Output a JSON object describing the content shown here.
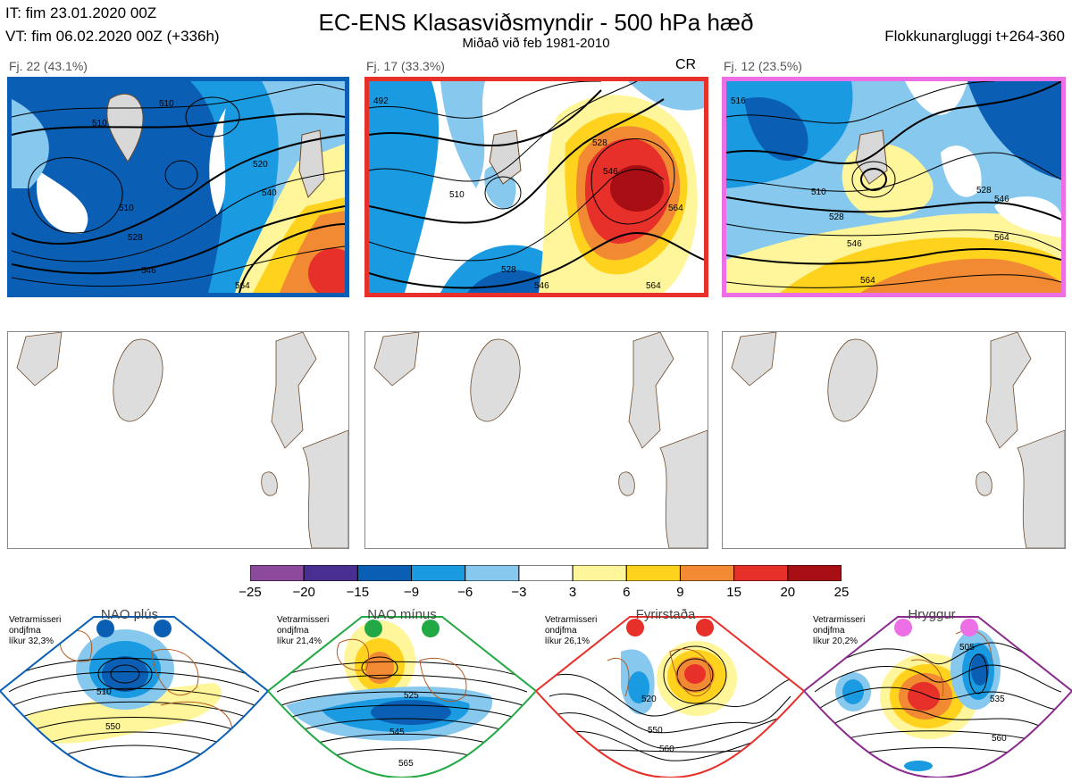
{
  "header": {
    "it": "IT: fim 23.01.2020 00Z",
    "vt": "VT: fim 06.02.2020 00Z  (+336h)",
    "title": "EC-ENS Klasasviðsmyndir - 500 hPa hæð",
    "subtitle": "Miðað við feb 1981-2010",
    "window": "Flokkunargluggi t+264-360"
  },
  "clusters": [
    {
      "label": "Fj. 22 (43.1%)",
      "frame_color": "#0a5fb4",
      "contour_labels": [
        "510",
        "510",
        "520",
        "540",
        "528",
        "546",
        "564",
        "510"
      ]
    },
    {
      "label": "Fj. 17 (33.3%)",
      "frame_color": "#e8302a",
      "badge": "CR",
      "contour_labels": [
        "528",
        "546",
        "510",
        "564",
        "528",
        "546",
        "564",
        "492"
      ]
    },
    {
      "label": "Fj. 12 (23.5%)",
      "frame_color": "#ec6fe6",
      "contour_labels": [
        "510",
        "528",
        "546",
        "564",
        "528",
        "546",
        "564",
        "516"
      ]
    }
  ],
  "colorbar": {
    "ticks": [
      "−25",
      "−20",
      "−15",
      "−9",
      "−6",
      "−3",
      "3",
      "6",
      "9",
      "15",
      "20",
      "25"
    ],
    "colors": [
      "#8d4a9c",
      "#4a2f92",
      "#0a5fb4",
      "#1a9ae0",
      "#86c8ee",
      "#ffffff",
      "#fff59a",
      "#ffd21e",
      "#f18a32",
      "#e8302a",
      "#a80f14"
    ]
  },
  "regimes": [
    {
      "name": "NAO plús",
      "note": [
        "Vetrarmisseri",
        "ondjfma",
        "líkur 32,3%"
      ],
      "color": "#0a5fb4",
      "contour_labels": [
        "510",
        "550"
      ]
    },
    {
      "name": "NAO mínus",
      "note": [
        "Vetrarmisseri",
        "ondjfma",
        "líkur 21,4%"
      ],
      "color": "#22a844",
      "contour_labels": [
        "525",
        "545",
        "565"
      ]
    },
    {
      "name": "Fyrirstaða",
      "note": [
        "Vetrarmisseri",
        "ondjfma",
        "líkur 26,1%"
      ],
      "color": "#e8302a",
      "contour_labels": [
        "520",
        "550",
        "560"
      ]
    },
    {
      "name": "Hryggur",
      "note": [
        "Vetrarmisseri",
        "ondjfma",
        "líkur 20,2%"
      ],
      "color": "#8a2a8e",
      "dot_color": "#ec6fe6",
      "contour_labels": [
        "505",
        "535",
        "560"
      ]
    }
  ]
}
